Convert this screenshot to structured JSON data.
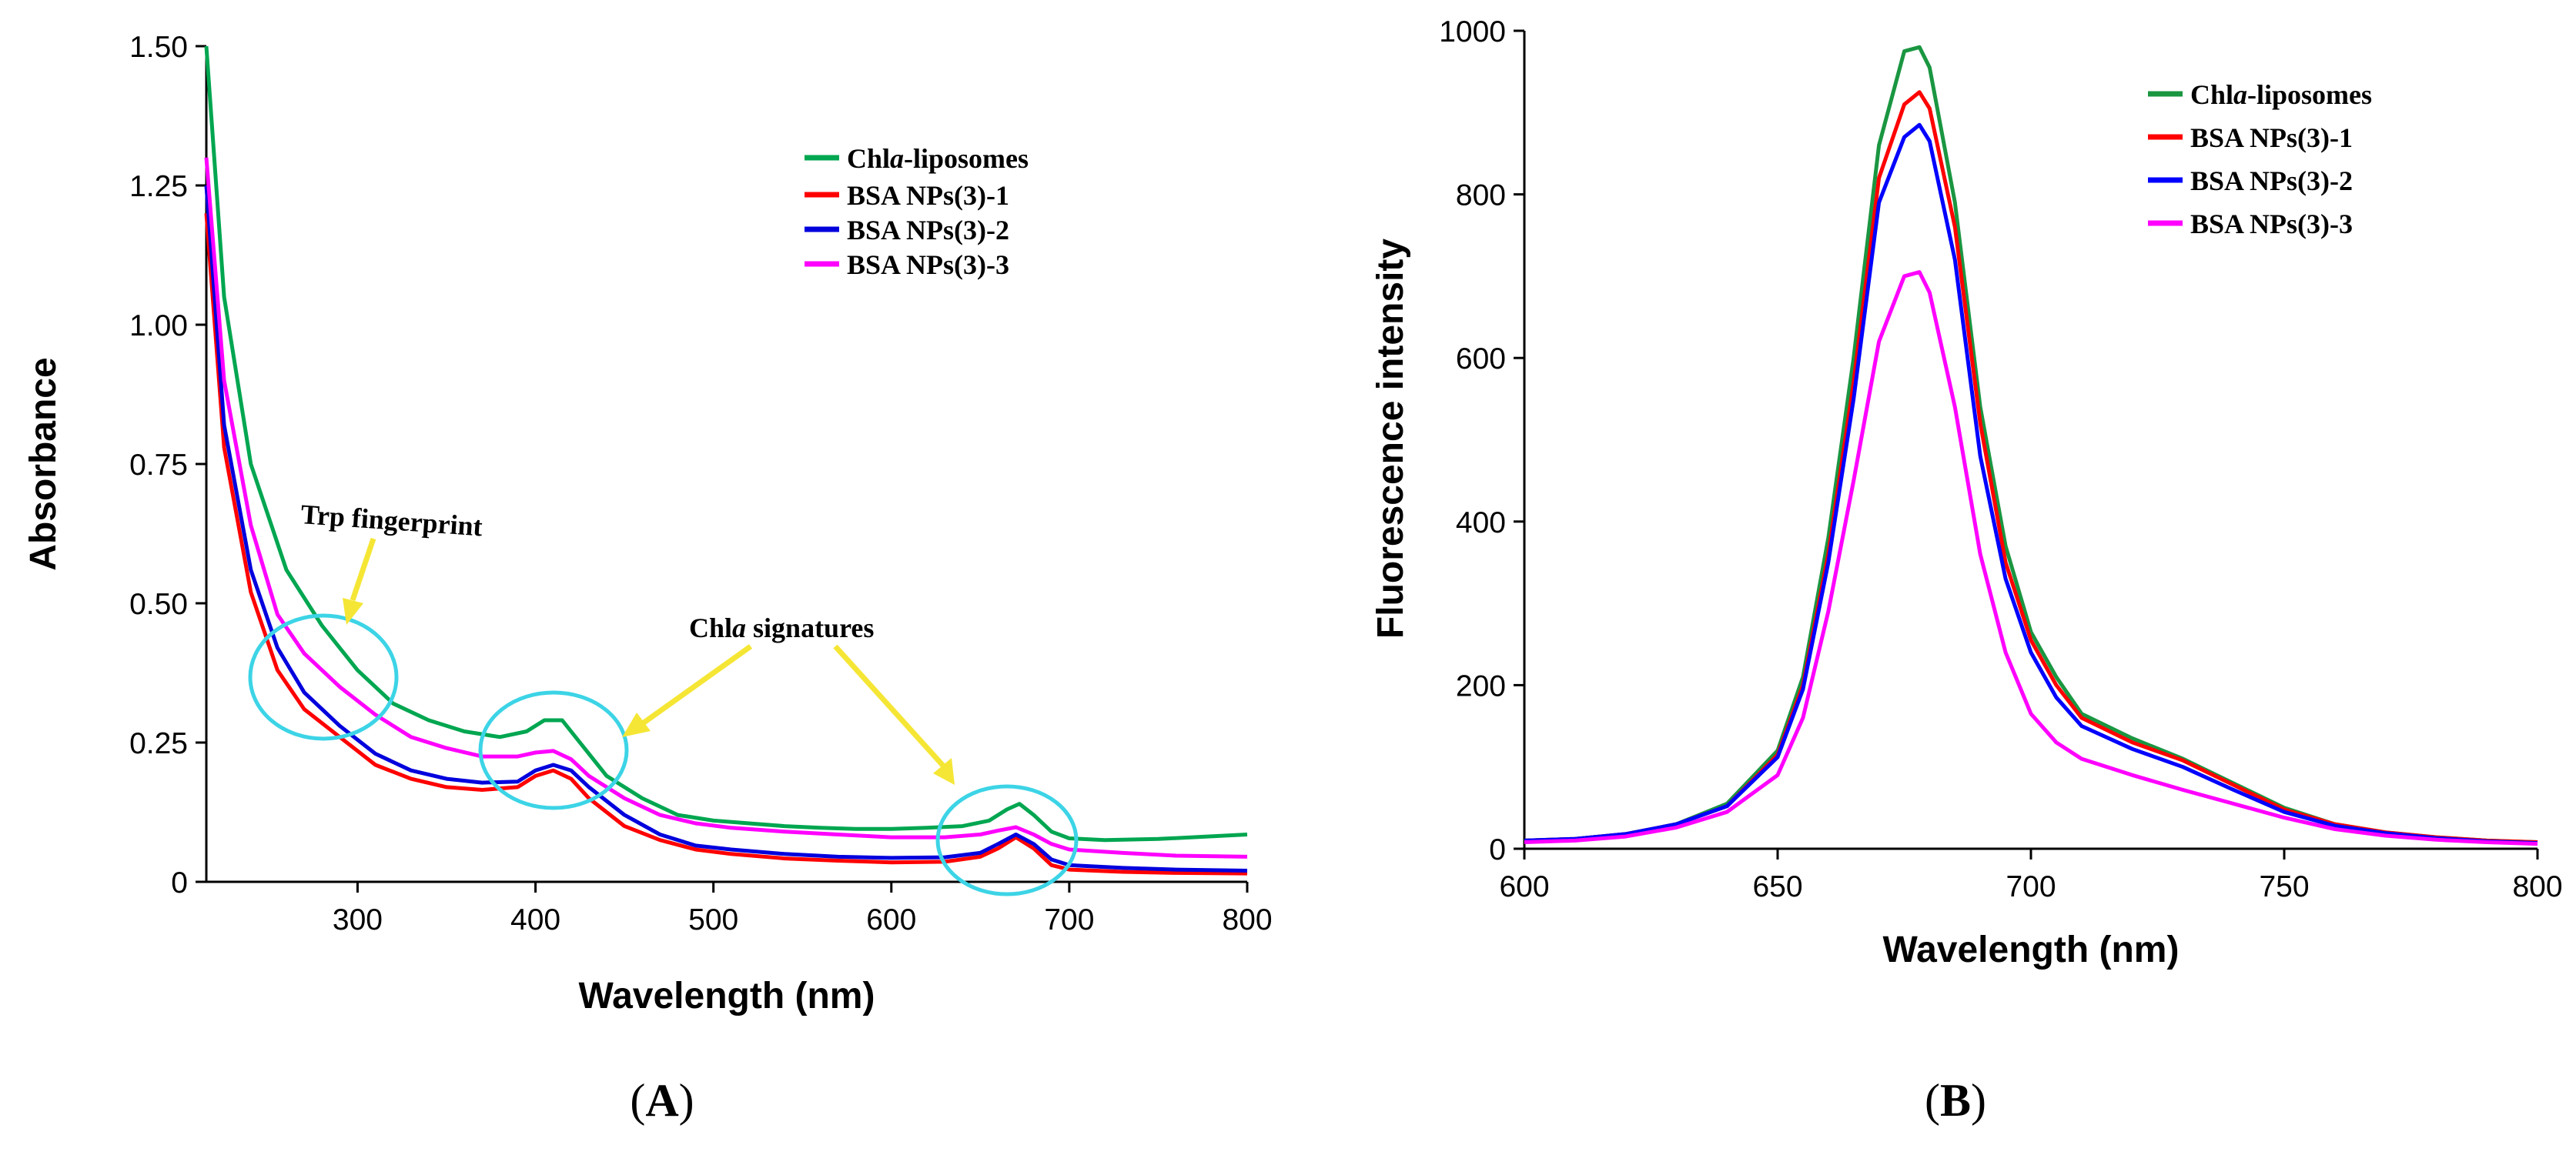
{
  "chart_data": [
    {
      "panel": "(A)",
      "type": "line",
      "title": "",
      "xlabel": "Wavelength (nm)",
      "ylabel": "Absorbance",
      "xlim": [
        215,
        800
      ],
      "ylim": [
        0,
        1.5
      ],
      "xticks": [
        300,
        400,
        500,
        600,
        700,
        800
      ],
      "yticks": [
        0,
        0.25,
        0.5,
        0.75,
        1.0,
        1.25,
        1.5
      ],
      "ytick_labels": [
        "0",
        "0.25",
        "0.50",
        "0.75",
        "1.00",
        "1.25",
        "1.50"
      ],
      "legend_position": "top-right",
      "series": [
        {
          "name": "Chla-liposomes",
          "legend_prefix": "Chl",
          "legend_italic": "a",
          "legend_suffix": "-liposomes",
          "color": "#00a650",
          "x": [
            215,
            225,
            240,
            260,
            280,
            300,
            320,
            340,
            360,
            380,
            395,
            405,
            415,
            425,
            440,
            460,
            480,
            500,
            520,
            540,
            560,
            580,
            600,
            620,
            640,
            655,
            665,
            672,
            680,
            690,
            700,
            720,
            750,
            800
          ],
          "y": [
            1.5,
            1.05,
            0.75,
            0.56,
            0.46,
            0.38,
            0.32,
            0.29,
            0.27,
            0.26,
            0.27,
            0.29,
            0.29,
            0.25,
            0.19,
            0.15,
            0.12,
            0.11,
            0.105,
            0.1,
            0.097,
            0.095,
            0.095,
            0.097,
            0.1,
            0.11,
            0.13,
            0.14,
            0.12,
            0.09,
            0.078,
            0.075,
            0.077,
            0.085
          ]
        },
        {
          "name": "BSA NPs(3)-1",
          "color": "#ff0000",
          "x": [
            215,
            225,
            240,
            255,
            270,
            290,
            310,
            330,
            350,
            370,
            390,
            400,
            410,
            420,
            430,
            450,
            470,
            490,
            510,
            540,
            570,
            600,
            630,
            650,
            660,
            670,
            680,
            690,
            700,
            730,
            760,
            800
          ],
          "y": [
            1.2,
            0.78,
            0.52,
            0.38,
            0.31,
            0.26,
            0.21,
            0.185,
            0.17,
            0.165,
            0.17,
            0.19,
            0.2,
            0.185,
            0.15,
            0.1,
            0.075,
            0.058,
            0.05,
            0.042,
            0.038,
            0.035,
            0.036,
            0.045,
            0.06,
            0.08,
            0.06,
            0.03,
            0.022,
            0.018,
            0.016,
            0.015
          ]
        },
        {
          "name": "BSA NPs(3)-2",
          "color": "#0000dd",
          "x": [
            215,
            225,
            240,
            255,
            270,
            290,
            310,
            330,
            350,
            370,
            390,
            400,
            410,
            420,
            430,
            450,
            470,
            490,
            510,
            540,
            570,
            600,
            630,
            650,
            660,
            670,
            680,
            690,
            700,
            730,
            760,
            800
          ],
          "y": [
            1.25,
            0.82,
            0.56,
            0.42,
            0.34,
            0.28,
            0.23,
            0.2,
            0.185,
            0.178,
            0.18,
            0.2,
            0.21,
            0.2,
            0.17,
            0.12,
            0.085,
            0.065,
            0.058,
            0.05,
            0.045,
            0.043,
            0.044,
            0.052,
            0.068,
            0.085,
            0.068,
            0.04,
            0.03,
            0.025,
            0.022,
            0.02
          ]
        },
        {
          "name": "BSA NPs(3)-3",
          "color": "#ff00ff",
          "x": [
            215,
            225,
            240,
            255,
            270,
            290,
            310,
            330,
            350,
            370,
            390,
            400,
            410,
            420,
            430,
            450,
            470,
            490,
            510,
            540,
            570,
            600,
            630,
            650,
            660,
            670,
            680,
            690,
            700,
            730,
            760,
            800
          ],
          "y": [
            1.3,
            0.9,
            0.64,
            0.48,
            0.41,
            0.35,
            0.3,
            0.26,
            0.24,
            0.225,
            0.225,
            0.232,
            0.235,
            0.22,
            0.19,
            0.15,
            0.12,
            0.105,
            0.097,
            0.09,
            0.085,
            0.08,
            0.08,
            0.085,
            0.092,
            0.098,
            0.085,
            0.068,
            0.058,
            0.052,
            0.047,
            0.045
          ]
        }
      ],
      "annotations": [
        {
          "text": "Trp fingerprint"
        },
        {
          "text_prefix": "Chl",
          "text_italic": "a",
          "text_suffix": " signatures"
        }
      ]
    },
    {
      "panel": "(B)",
      "type": "line",
      "title": "",
      "xlabel": "Wavelength (nm)",
      "ylabel": "Fluorescence intensity",
      "xlim": [
        600,
        800
      ],
      "ylim": [
        0,
        1000
      ],
      "xticks": [
        600,
        650,
        700,
        750,
        800
      ],
      "yticks": [
        0,
        200,
        400,
        600,
        800,
        1000
      ],
      "legend_position": "top-right",
      "series": [
        {
          "name": "Chla-liposomes",
          "legend_prefix": "Chl",
          "legend_italic": "a",
          "legend_suffix": "-liposomes",
          "color": "#1a9641",
          "x": [
            600,
            610,
            620,
            630,
            640,
            650,
            655,
            660,
            665,
            670,
            675,
            678,
            680,
            685,
            690,
            695,
            700,
            705,
            710,
            720,
            730,
            740,
            750,
            760,
            770,
            780,
            790,
            800
          ],
          "y": [
            10,
            12,
            18,
            30,
            55,
            120,
            210,
            380,
            600,
            860,
            975,
            980,
            955,
            790,
            540,
            370,
            265,
            210,
            165,
            135,
            110,
            80,
            50,
            30,
            20,
            14,
            10,
            8
          ]
        },
        {
          "name": "BSA NPs(3)-1",
          "color": "#ff0000",
          "x": [
            600,
            610,
            620,
            630,
            640,
            650,
            655,
            660,
            665,
            670,
            675,
            678,
            680,
            685,
            690,
            695,
            700,
            705,
            710,
            720,
            730,
            740,
            750,
            760,
            770,
            780,
            790,
            800
          ],
          "y": [
            10,
            12,
            18,
            30,
            52,
            115,
            200,
            360,
            570,
            820,
            910,
            925,
            905,
            760,
            520,
            350,
            255,
            200,
            160,
            130,
            108,
            78,
            48,
            30,
            20,
            14,
            10,
            8
          ]
        },
        {
          "name": "BSA NPs(3)-2",
          "color": "#0000ff",
          "x": [
            600,
            610,
            620,
            630,
            640,
            650,
            655,
            660,
            665,
            670,
            675,
            678,
            680,
            685,
            690,
            695,
            700,
            705,
            710,
            720,
            730,
            740,
            750,
            760,
            770,
            780,
            790,
            800
          ],
          "y": [
            10,
            12,
            18,
            30,
            52,
            112,
            195,
            350,
            550,
            790,
            870,
            885,
            865,
            720,
            480,
            330,
            240,
            185,
            150,
            122,
            100,
            72,
            45,
            28,
            19,
            13,
            9,
            7
          ]
        },
        {
          "name": "BSA NPs(3)-3",
          "color": "#ff00ff",
          "x": [
            600,
            610,
            620,
            630,
            640,
            650,
            655,
            660,
            665,
            670,
            675,
            678,
            680,
            685,
            690,
            695,
            700,
            705,
            710,
            720,
            730,
            740,
            750,
            760,
            770,
            780,
            790,
            800
          ],
          "y": [
            8,
            10,
            15,
            26,
            45,
            90,
            160,
            290,
            450,
            620,
            700,
            705,
            680,
            540,
            360,
            240,
            165,
            130,
            110,
            90,
            72,
            55,
            38,
            24,
            16,
            11,
            8,
            6
          ]
        }
      ]
    }
  ],
  "panel_labels": {
    "a": {
      "open": "(",
      "letter": "A",
      "close": ")"
    },
    "b": {
      "open": "(",
      "letter": "B",
      "close": ")"
    }
  }
}
